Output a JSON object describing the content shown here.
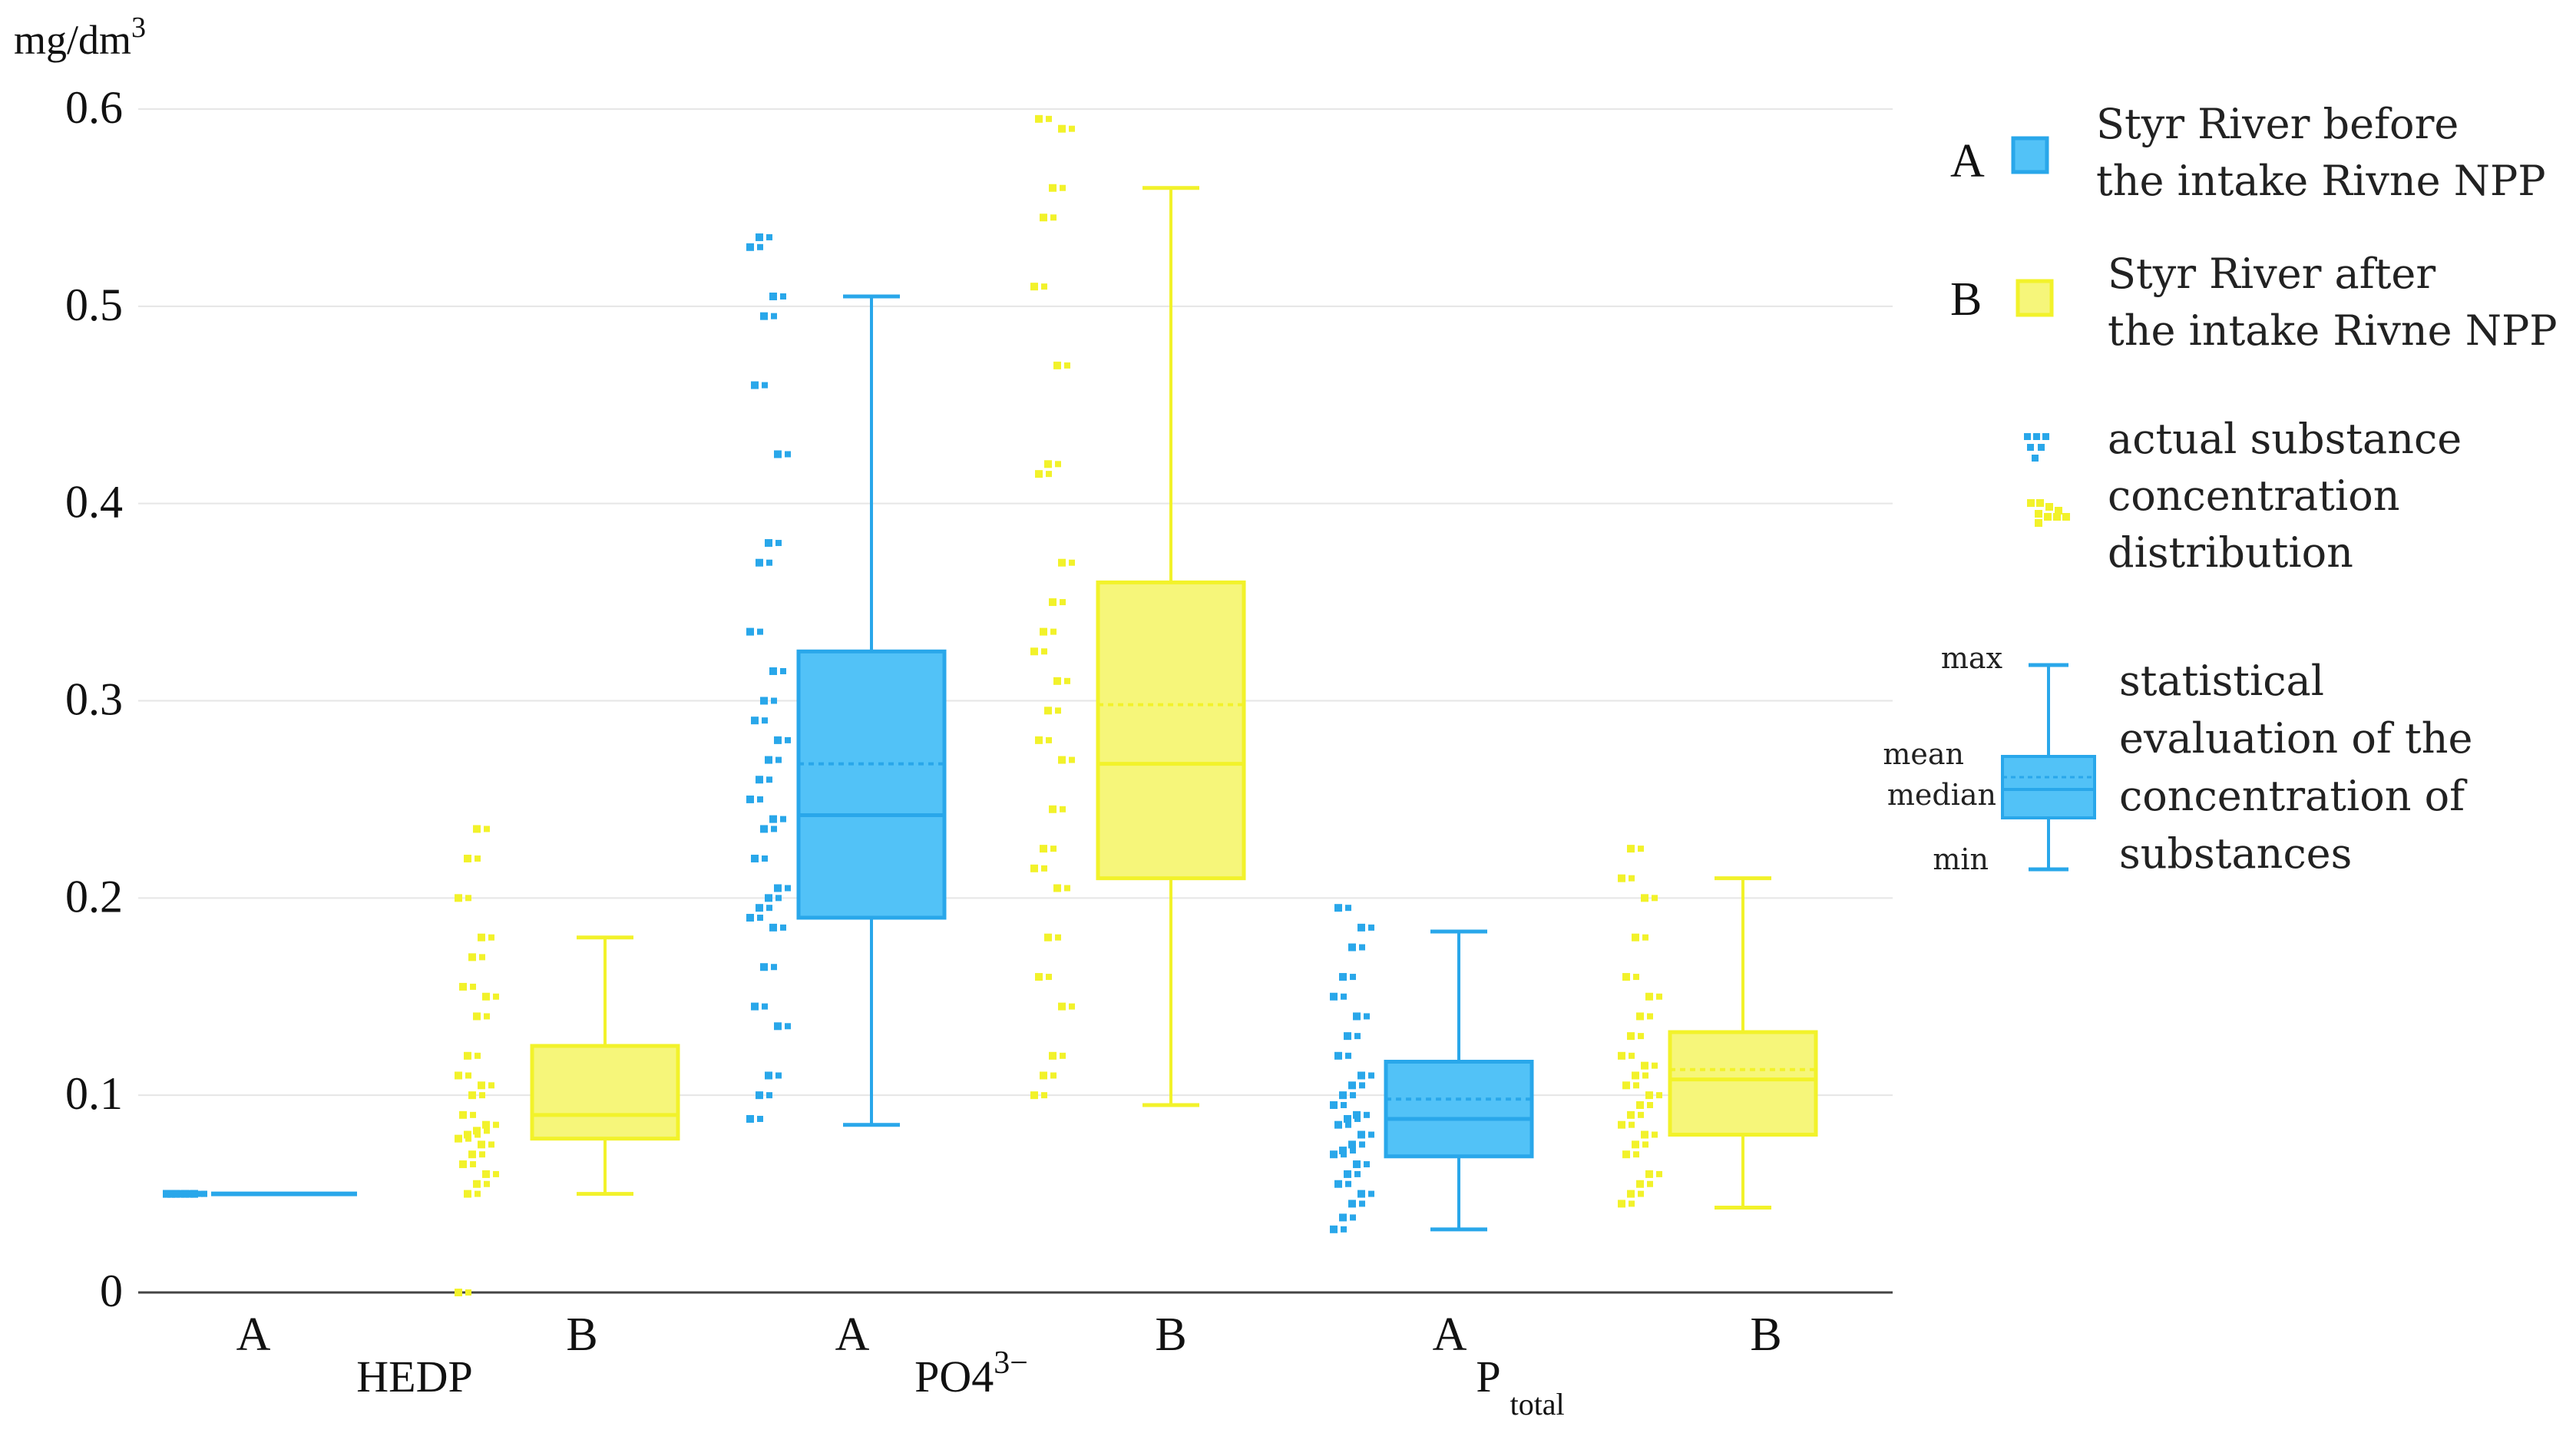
{
  "chart_data": {
    "type": "boxplot",
    "ylabel": "mg/dm",
    "ylabel_sup": "3",
    "ylim": [
      0,
      0.6
    ],
    "yticks": [
      "0",
      "0.1",
      "0.2",
      "0.3",
      "0.4",
      "0.5",
      "0.6"
    ],
    "grid": true,
    "colors": {
      "A": "#29a7ea",
      "B": "#f2f22a",
      "A_fill": "#52c2f7",
      "B_fill": "#f6f67a",
      "axis": "#444444",
      "grid": "#e6e6e6"
    },
    "groups": [
      {
        "label": "HEDP",
        "sub": "",
        "sup": ""
      },
      {
        "label": "PO4",
        "sub": "",
        "sup": "3−"
      },
      {
        "label": "P",
        "sub": "total",
        "sup": ""
      }
    ],
    "category_labels": [
      "A",
      "B",
      "A",
      "B",
      "A",
      "B"
    ],
    "boxes": [
      {
        "group": 0,
        "series": "A",
        "min": 0.05,
        "q1": 0.05,
        "median": 0.05,
        "mean": 0.05,
        "q3": 0.05,
        "max": 0.05,
        "points": [
          0.05,
          0.05,
          0.05,
          0.05,
          0.05,
          0.05,
          0.05,
          0.05,
          0.05,
          0.05,
          0.05,
          0.05
        ]
      },
      {
        "group": 0,
        "series": "B",
        "min": 0.05,
        "q1": 0.078,
        "median": 0.09,
        "mean": 0.09,
        "q3": 0.125,
        "max": 0.18,
        "points": [
          0.0,
          0.05,
          0.055,
          0.06,
          0.065,
          0.07,
          0.075,
          0.078,
          0.08,
          0.082,
          0.085,
          0.09,
          0.1,
          0.105,
          0.11,
          0.12,
          0.14,
          0.15,
          0.155,
          0.17,
          0.18,
          0.2,
          0.22,
          0.235
        ]
      },
      {
        "group": 1,
        "series": "A",
        "min": 0.085,
        "q1": 0.19,
        "median": 0.242,
        "mean": 0.268,
        "q3": 0.325,
        "max": 0.505,
        "points": [
          0.088,
          0.1,
          0.11,
          0.135,
          0.145,
          0.165,
          0.185,
          0.19,
          0.195,
          0.2,
          0.205,
          0.22,
          0.235,
          0.24,
          0.25,
          0.26,
          0.27,
          0.28,
          0.29,
          0.3,
          0.315,
          0.335,
          0.37,
          0.38,
          0.425,
          0.46,
          0.495,
          0.505,
          0.53,
          0.535
        ]
      },
      {
        "group": 1,
        "series": "B",
        "min": 0.095,
        "q1": 0.21,
        "median": 0.268,
        "mean": 0.298,
        "q3": 0.36,
        "max": 0.56,
        "points": [
          0.1,
          0.11,
          0.12,
          0.145,
          0.16,
          0.18,
          0.205,
          0.215,
          0.225,
          0.245,
          0.27,
          0.28,
          0.295,
          0.31,
          0.325,
          0.335,
          0.35,
          0.37,
          0.415,
          0.42,
          0.47,
          0.51,
          0.545,
          0.56,
          0.59,
          0.595
        ]
      },
      {
        "group": 2,
        "series": "A",
        "min": 0.032,
        "q1": 0.069,
        "median": 0.088,
        "mean": 0.098,
        "q3": 0.117,
        "max": 0.183,
        "points": [
          0.032,
          0.038,
          0.045,
          0.05,
          0.055,
          0.06,
          0.065,
          0.07,
          0.072,
          0.075,
          0.08,
          0.085,
          0.088,
          0.09,
          0.095,
          0.1,
          0.105,
          0.11,
          0.12,
          0.13,
          0.14,
          0.15,
          0.16,
          0.175,
          0.185,
          0.195
        ]
      },
      {
        "group": 2,
        "series": "B",
        "min": 0.043,
        "q1": 0.08,
        "median": 0.108,
        "mean": 0.113,
        "q3": 0.132,
        "max": 0.21,
        "points": [
          0.045,
          0.05,
          0.055,
          0.06,
          0.07,
          0.075,
          0.08,
          0.085,
          0.09,
          0.095,
          0.1,
          0.105,
          0.11,
          0.115,
          0.12,
          0.13,
          0.14,
          0.15,
          0.16,
          0.18,
          0.2,
          0.21,
          0.225
        ]
      }
    ],
    "legend": {
      "A_letter": "A",
      "A_text": [
        "Styr River before",
        "the intake Rivne NPP"
      ],
      "B_letter": "B",
      "B_text": [
        "Styr River after",
        "the intake Rivne NPP"
      ],
      "points_text": [
        "actual substance",
        "concentration",
        "distribution"
      ],
      "stats_text": [
        "statistical",
        "evaluation of the",
        "concentration of",
        "substances"
      ],
      "stats_labels": {
        "max": "max",
        "mean": "mean",
        "median": "median",
        "min": "min"
      }
    }
  }
}
